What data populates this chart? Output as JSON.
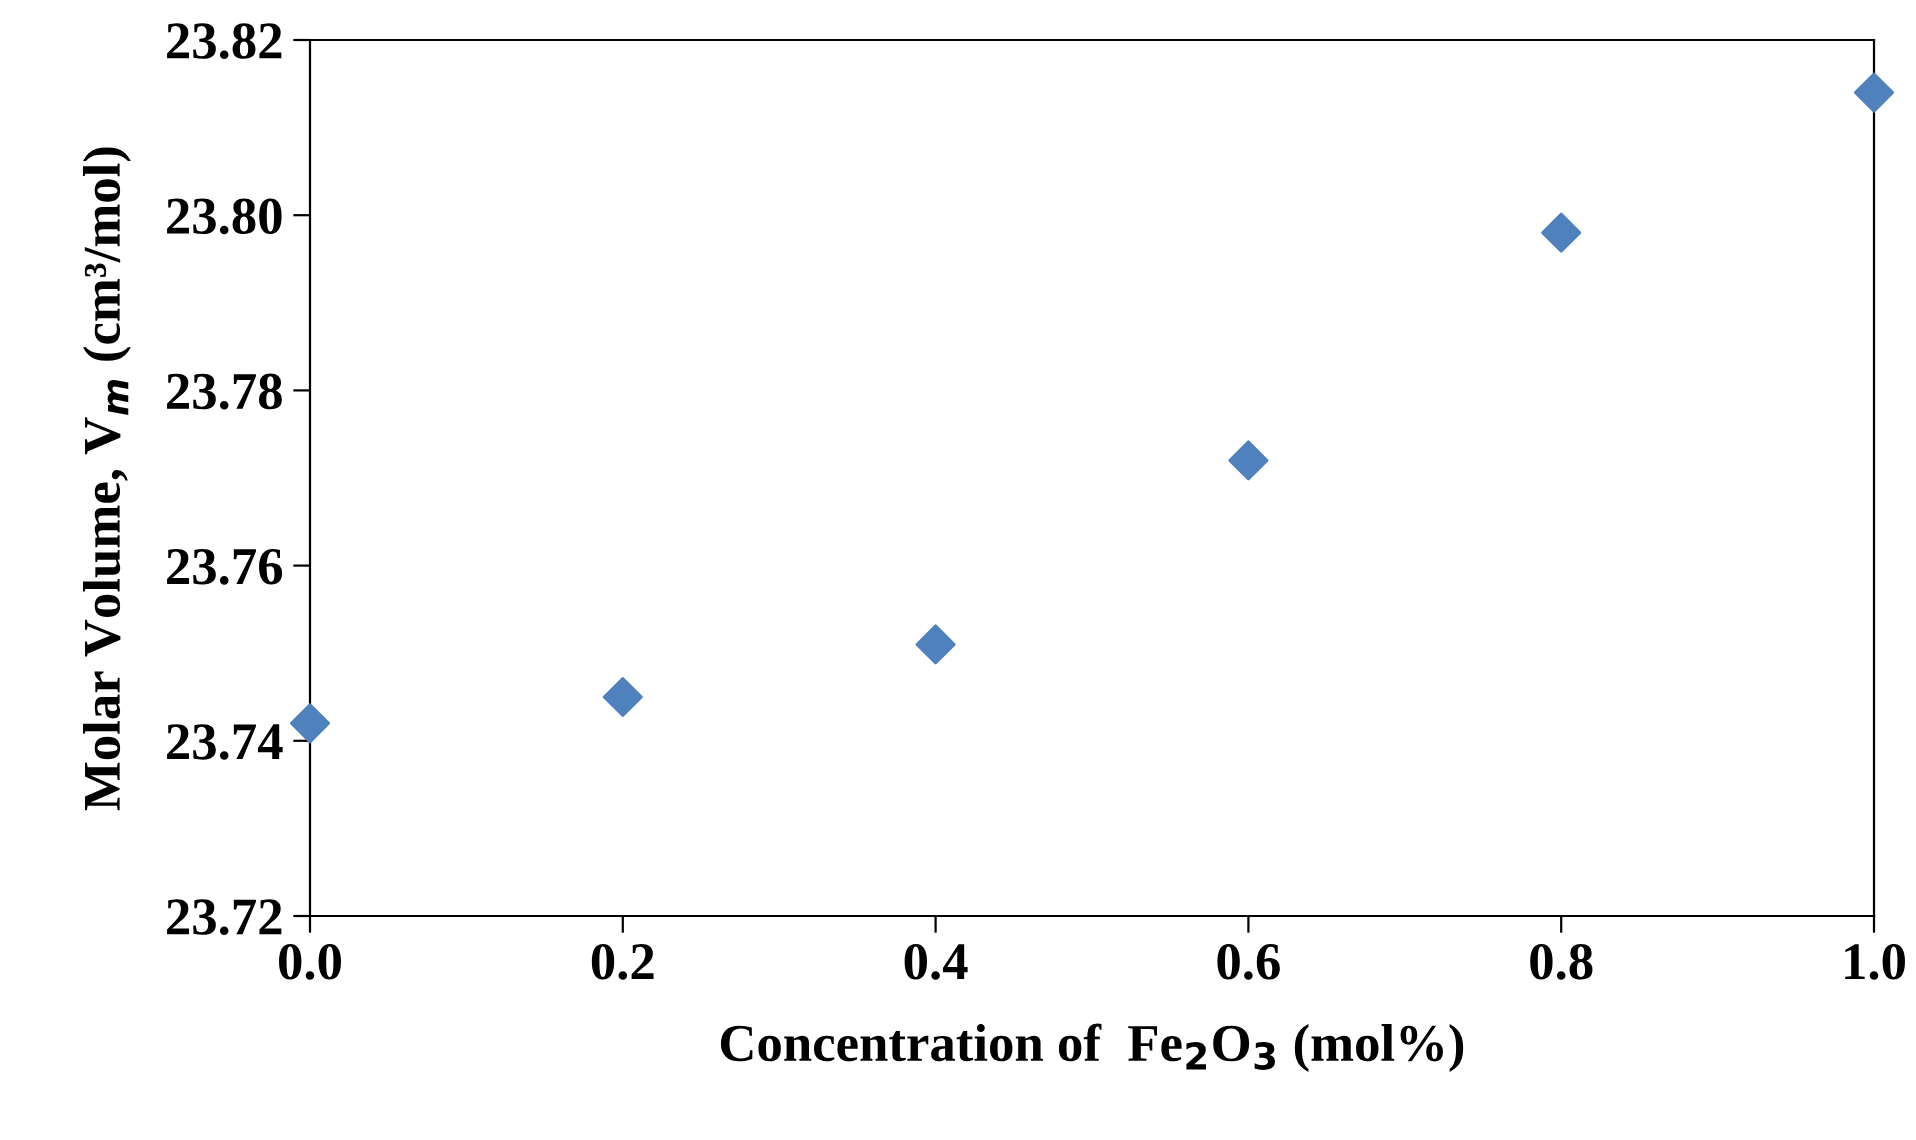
{
  "chart_data": {
    "type": "scatter",
    "xlabel": "Concentration of  Fe$_{2}$O$_{3}$ (mol%)",
    "ylabel": "Molar Volume, V$_{m}$ (cm³/mol)",
    "x": [
      0.0,
      0.2,
      0.4,
      0.6,
      0.8,
      1.0
    ],
    "series": [
      {
        "color": "#4f81bd",
        "values": [
          23.742,
          23.745,
          23.751,
          23.772,
          23.798,
          23.814
        ]
      }
    ],
    "marker": "diamond",
    "grid": false,
    "legend": false,
    "xlim": [
      0.0,
      1.0
    ],
    "xticks": [
      {
        "value": 0.0,
        "label": "0.0"
      },
      {
        "value": 0.2,
        "label": "0.2"
      },
      {
        "value": 0.4,
        "label": "0.4"
      },
      {
        "value": 0.6,
        "label": "0.6"
      },
      {
        "value": 0.8,
        "label": "0.8"
      },
      {
        "value": 1.0,
        "label": "1.0"
      }
    ],
    "ylim": [
      23.72,
      23.82
    ],
    "yticks": [
      {
        "value": 23.72,
        "label": "23.72"
      },
      {
        "value": 23.74,
        "label": "23.74"
      },
      {
        "value": 23.76,
        "label": "23.76"
      },
      {
        "value": 23.78,
        "label": "23.78"
      },
      {
        "value": 23.8,
        "label": "23.80"
      },
      {
        "value": 23.82,
        "label": "23.82"
      }
    ]
  }
}
